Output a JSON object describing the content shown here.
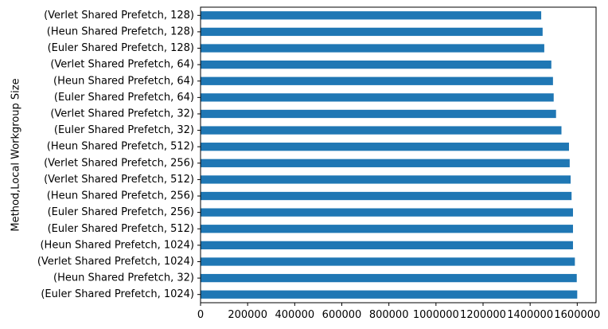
{
  "chart_data": {
    "type": "bar",
    "orientation": "horizontal",
    "ylabel": "Method,Local Workgroup Size",
    "xlabel": "",
    "xlim": [
      0,
      1680000
    ],
    "xticks": [
      0,
      200000,
      400000,
      600000,
      800000,
      1000000,
      1200000,
      1400000,
      1600000
    ],
    "categories": [
      "(Verlet Shared Prefetch, 128)",
      "(Heun Shared Prefetch, 128)",
      "(Euler Shared Prefetch, 128)",
      "(Verlet Shared Prefetch, 64)",
      "(Heun Shared Prefetch, 64)",
      "(Euler Shared Prefetch, 64)",
      "(Verlet Shared Prefetch, 32)",
      "(Euler Shared Prefetch, 32)",
      "(Heun Shared Prefetch, 512)",
      "(Verlet Shared Prefetch, 256)",
      "(Verlet Shared Prefetch, 512)",
      "(Heun Shared Prefetch, 256)",
      "(Euler Shared Prefetch, 256)",
      "(Euler Shared Prefetch, 512)",
      "(Heun Shared Prefetch, 1024)",
      "(Verlet Shared Prefetch, 1024)",
      "(Heun Shared Prefetch, 32)",
      "(Euler Shared Prefetch, 1024)"
    ],
    "values": [
      1447000,
      1453000,
      1460000,
      1490000,
      1497000,
      1500000,
      1510000,
      1533000,
      1565000,
      1568000,
      1572000,
      1576000,
      1582000,
      1582000,
      1582000,
      1590000,
      1598000,
      1600000
    ],
    "bar_color": "#1f77b4",
    "grid": false,
    "legend": "none"
  }
}
